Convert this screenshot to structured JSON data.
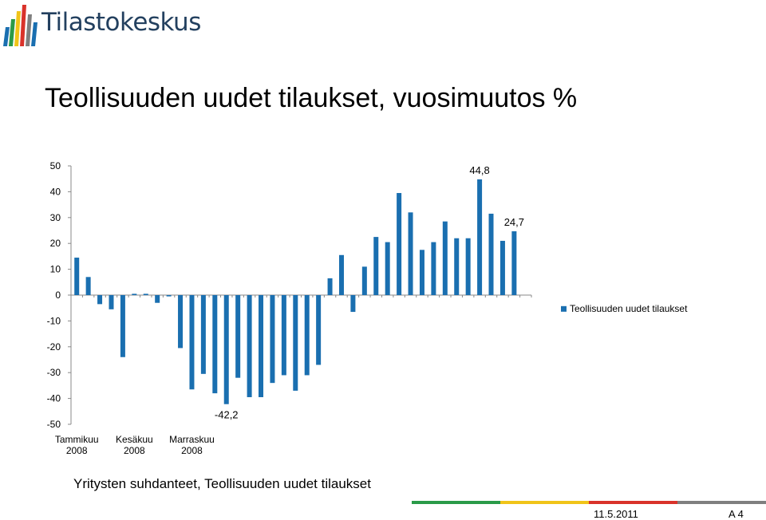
{
  "brand": {
    "logo_text": "Tilastokeskus"
  },
  "slide": {
    "title": "Teollisuuden uudet tilaukset, vuosimuutos %",
    "subtitle": "Yritysten suhdanteet, Teollisuuden uudet tilaukset",
    "date": "11.5.2011",
    "page": "A 4"
  },
  "colors": {
    "bar": "#1a6fb0",
    "logo_text": "#23405f",
    "logo_bars": [
      "#1a6fb0",
      "#2a9a48",
      "#f0c419",
      "#d9322a",
      "#7f7f7f",
      "#1a6fb0"
    ],
    "footer_stripe": [
      "#2a9a48",
      "#f0c419",
      "#d9322a",
      "#7f7f7f"
    ]
  },
  "chart_data": {
    "type": "bar",
    "x": [
      "2008-01",
      "2008-02",
      "2008-03",
      "2008-04",
      "2008-05",
      "2008-06",
      "2008-07",
      "2008-08",
      "2008-09",
      "2008-10",
      "2008-11",
      "2008-12",
      "2009-01",
      "2009-02",
      "2009-03",
      "2009-04",
      "2009-05",
      "2009-06",
      "2009-07",
      "2009-08",
      "2009-09",
      "2009-10",
      "2009-11",
      "2009-12",
      "2010-01",
      "2010-02",
      "2010-03",
      "2010-04",
      "2010-05",
      "2010-06",
      "2010-07",
      "2010-08",
      "2010-09",
      "2010-10",
      "2010-11",
      "2010-12",
      "2011-01",
      "2011-02",
      "2011-03",
      "2011-04"
    ],
    "series": [
      {
        "name": "Teollisuuden uudet tilaukset",
        "values": [
          14.5,
          7,
          -3.5,
          -5.5,
          -24,
          0.5,
          0.5,
          -3,
          -0.5,
          -20.5,
          -36.5,
          -30.5,
          -38,
          -42.2,
          -32,
          -39.5,
          -39.5,
          -34,
          -31,
          -37,
          -31,
          -27,
          6.5,
          15.5,
          -6.5,
          11,
          22.5,
          20.5,
          39.5,
          32,
          17.5,
          20.5,
          28.5,
          22,
          22,
          44.8,
          31.5,
          21,
          24.7,
          0
        ]
      }
    ],
    "xticks": [
      {
        "index": 0,
        "label": [
          "Tammikuu",
          "2008"
        ]
      },
      {
        "index": 5,
        "label": [
          "Kesäkuu",
          "2008"
        ]
      },
      {
        "index": 10,
        "label": [
          "Marraskuu",
          "2008"
        ]
      }
    ],
    "yticks": [
      "50",
      "40",
      "30",
      "20",
      "10",
      "0",
      "-10",
      "-20",
      "-30",
      "-40",
      "-50"
    ],
    "ylim": [
      -50,
      50
    ],
    "data_labels": [
      {
        "index": 35,
        "text": "44,8",
        "position": "above"
      },
      {
        "index": 38,
        "text": "24,7",
        "position": "above"
      },
      {
        "index": 13,
        "text": "-42,2",
        "position": "below"
      }
    ],
    "legend": {
      "position": "right"
    },
    "grid": false,
    "xlabel": "",
    "ylabel": ""
  }
}
